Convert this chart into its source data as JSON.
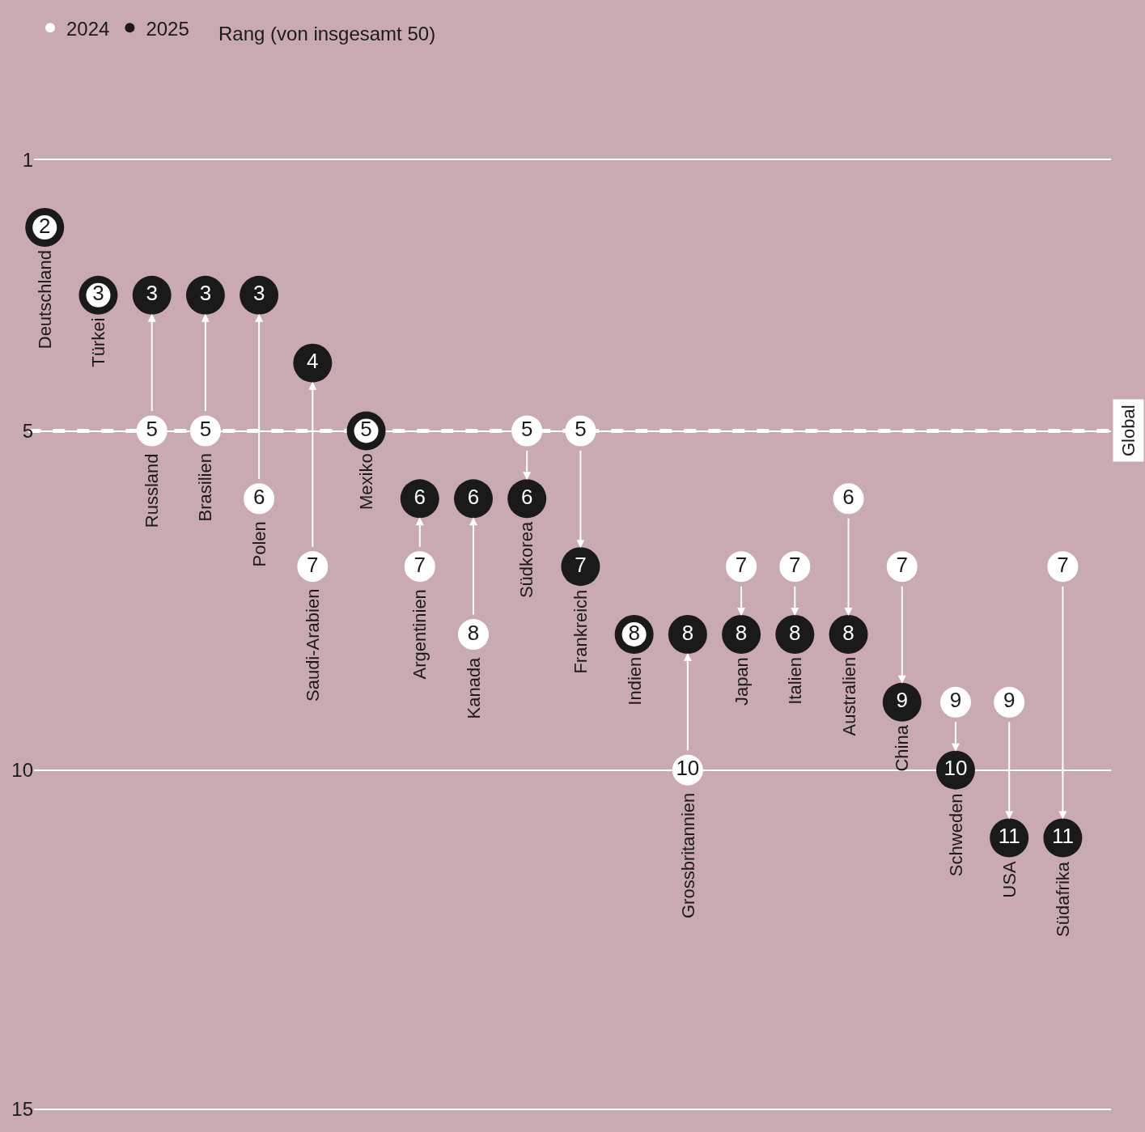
{
  "chart_data": {
    "type": "scatter",
    "annotations": [
      "Rang (von insgesamt 50)"
    ],
    "categories": [
      "Deutschland",
      "Türkei",
      "Russland",
      "Brasilien",
      "Polen",
      "Saudi-Arabien",
      "Mexiko",
      "Argentinien",
      "Kanada",
      "Südkorea",
      "Frankreich",
      "Indien",
      "Grossbritannien",
      "Japan",
      "Italien",
      "Australien",
      "China",
      "Schweden",
      "USA",
      "Südafrika"
    ],
    "series": [
      {
        "name": "2024",
        "color": "#ffffff",
        "values": [
          2,
          3,
          5,
          5,
          6,
          7,
          5,
          7,
          8,
          5,
          5,
          8,
          10,
          7,
          7,
          6,
          7,
          9,
          9,
          7
        ],
        "value_labels": [
          "2",
          "3",
          "5",
          "5",
          "6",
          "7",
          "5",
          "7",
          "8",
          "5",
          "5",
          "8",
          "10",
          "7",
          "7",
          "6",
          "7",
          "9",
          "9",
          "7"
        ]
      },
      {
        "name": "2025",
        "color": "#1a1a1a",
        "values": [
          2,
          3,
          3,
          3,
          3,
          4,
          5,
          6,
          6,
          6,
          7,
          8,
          8,
          8,
          8,
          8,
          9,
          10,
          11,
          11
        ],
        "value_labels": [
          null,
          null,
          "3",
          "3",
          "3",
          "4",
          null,
          "6",
          "6",
          "6",
          "7",
          null,
          "8",
          "8",
          "8",
          "8",
          "9",
          "10",
          "11",
          "11"
        ]
      }
    ],
    "ylim": [
      15.05,
      0.95
    ],
    "yticks": [
      1,
      5,
      10,
      15
    ],
    "grid": "y",
    "legend": "top left",
    "tick_labels": "y",
    "marker": "circle",
    "ref_lines": [
      {
        "axis": "y",
        "value": 5,
        "label": "Global",
        "color": "#ffffff",
        "line_style": "dashed"
      }
    ]
  }
}
